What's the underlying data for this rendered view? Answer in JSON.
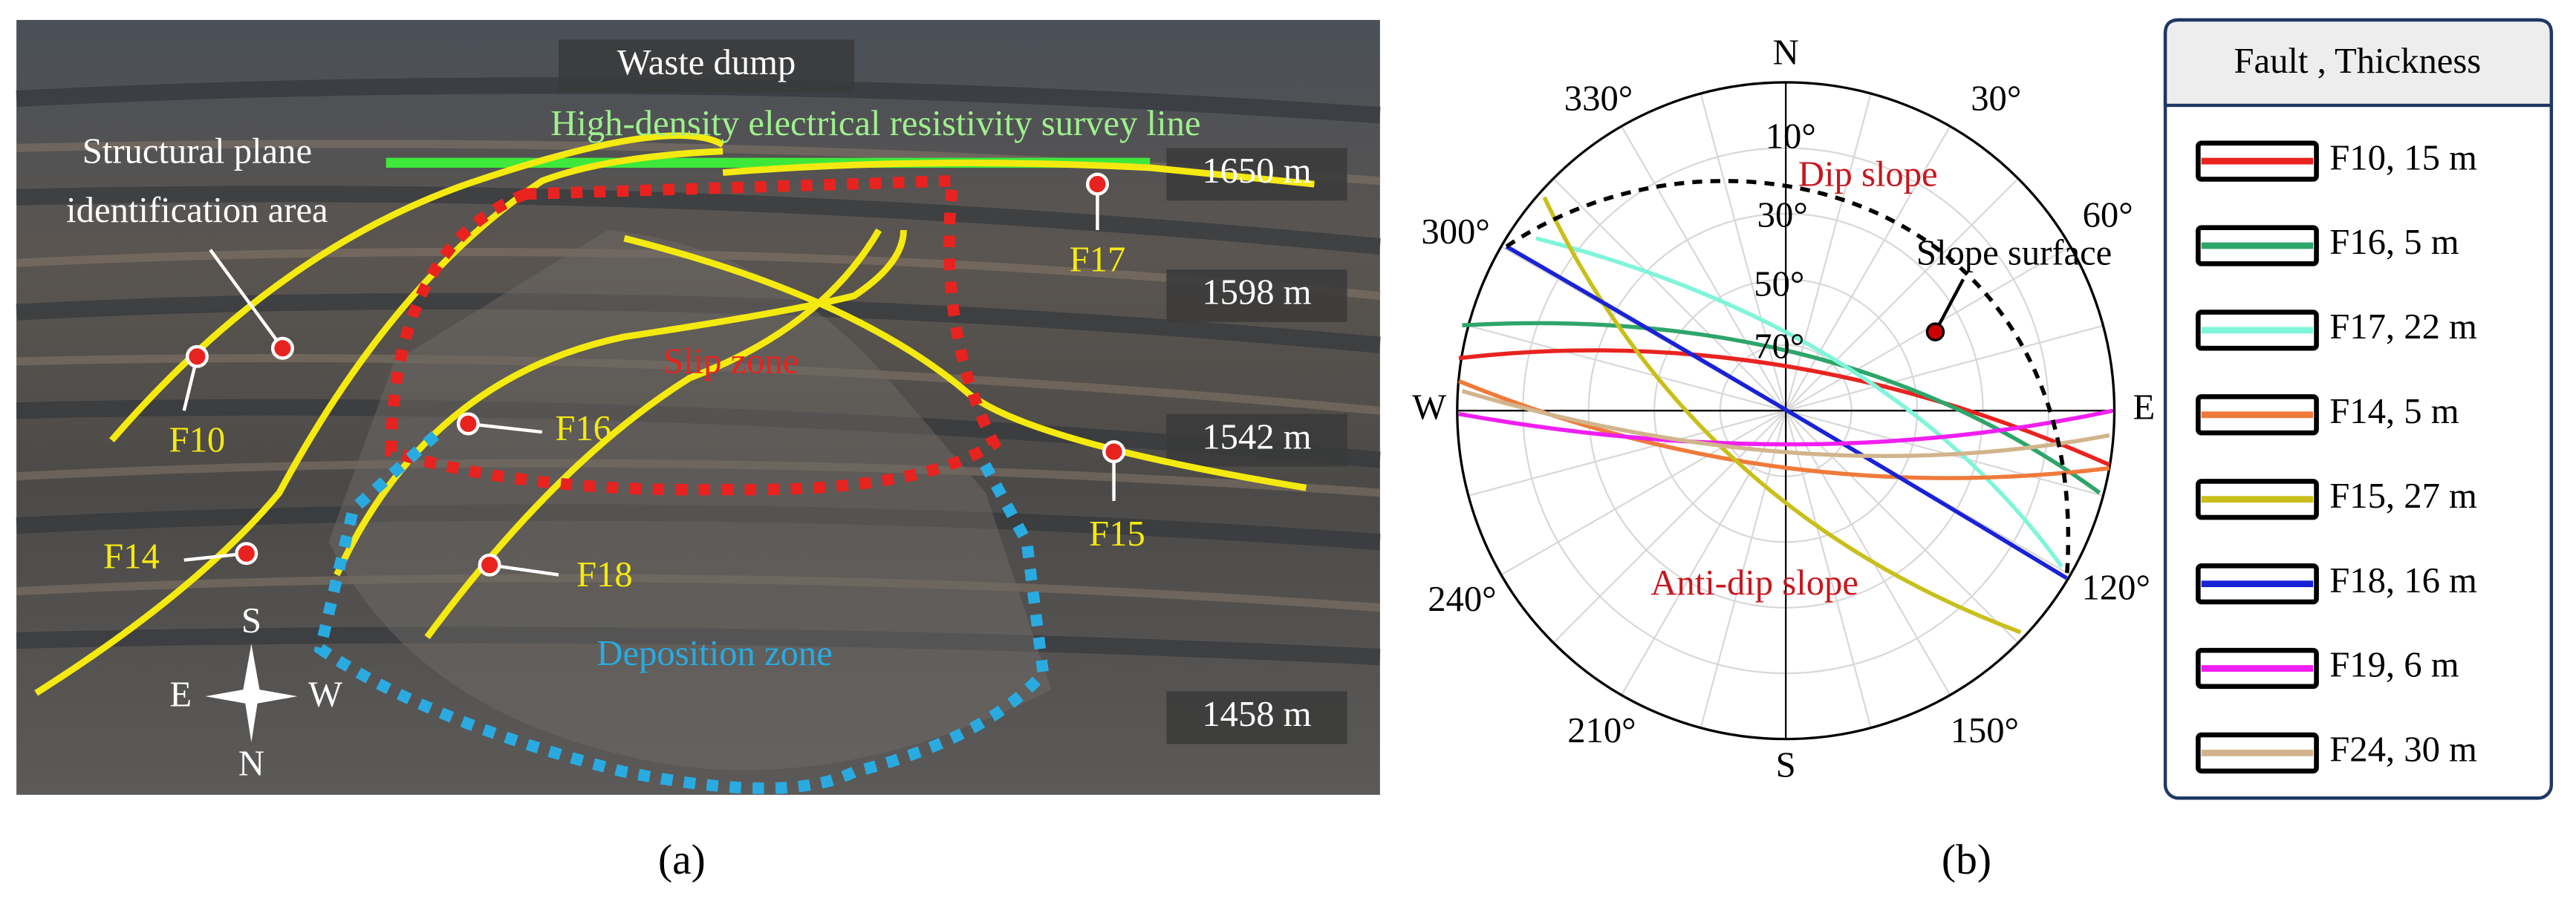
{
  "panel_a": {
    "label": "(a)",
    "waste_dump": "Waste dump",
    "survey_line": "High-density electrical resistivity survey line",
    "identification_area": [
      "Structural plane",
      "identification area"
    ],
    "slip_zone": "Slip zone",
    "deposition_zone": "Deposition zone",
    "elevations": [
      "1650 m",
      "1598 m",
      "1542 m",
      "1458 m"
    ],
    "faults": [
      "F10",
      "F16",
      "F17",
      "F14",
      "F18",
      "F15"
    ],
    "compass": {
      "top": "S",
      "left": "E",
      "right": "W",
      "bottom": "N"
    }
  },
  "panel_b": {
    "label": "(b)",
    "directions": {
      "north": "N",
      "south": "S",
      "west": "W",
      "east": "E"
    },
    "azimuths": [
      "330°",
      "30°",
      "60°",
      "300°",
      "240°",
      "120°",
      "210°",
      "150°"
    ],
    "dips": [
      "10°",
      "30°",
      "50°",
      "70°"
    ],
    "dip_slope": "Dip slope",
    "anti_dip_slope": "Anti-dip slope",
    "slope_surface": "Slope surface"
  },
  "legend": {
    "title": "Fault , Thickness",
    "entries": [
      {
        "name": "F10, 15 m",
        "color": "#e8231f"
      },
      {
        "name": "F16, 5 m",
        "color": "#2ea56a"
      },
      {
        "name": "F17, 22 m",
        "color": "#7ff5da"
      },
      {
        "name": "F14, 5 m",
        "color": "#ef7a3a"
      },
      {
        "name": "F15, 27 m",
        "color": "#c9bf1a"
      },
      {
        "name": "F18, 16 m",
        "color": "#1a22d6"
      },
      {
        "name": "F19, 6 m",
        "color": "#f01ef0"
      },
      {
        "name": "F24, 30 m",
        "color": "#d2b48c"
      }
    ]
  }
}
